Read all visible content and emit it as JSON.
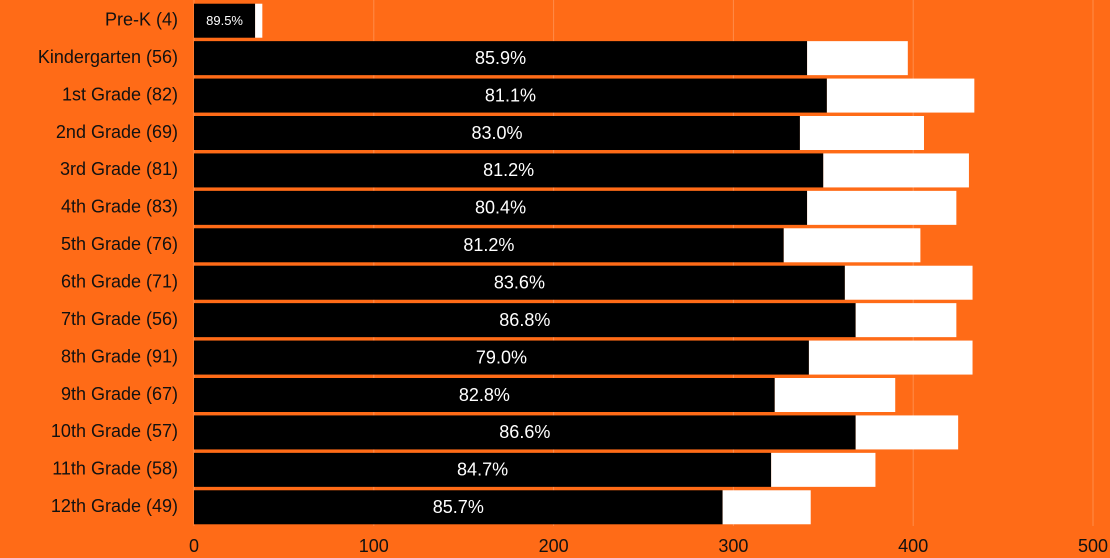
{
  "chart_data": {
    "type": "stacked_barh",
    "categories": [
      "Pre-K (4)",
      "Kindergarten (56)",
      "1st Grade (82)",
      "2nd Grade (69)",
      "3rd Grade (81)",
      "4th Grade (83)",
      "5th Grade (76)",
      "6th Grade (71)",
      "7th Grade (56)",
      "8th Grade (91)",
      "9th Grade (67)",
      "10th Grade (57)",
      "11th Grade (58)",
      "12th Grade (49)"
    ],
    "series": [
      {
        "color": "#000000",
        "values": [
          34,
          341,
          352,
          337,
          350,
          341,
          328,
          362,
          368,
          342,
          323,
          368,
          321,
          294
        ]
      },
      {
        "color": "#ffffff",
        "values": [
          4,
          56,
          82,
          69,
          81,
          83,
          76,
          71,
          56,
          91,
          67,
          57,
          58,
          49
        ]
      }
    ],
    "percent": {
      "values": [
        89.5,
        85.9,
        81.1,
        83.0,
        81.2,
        80.4,
        81.2,
        83.6,
        86.8,
        79.0,
        82.8,
        86.6,
        84.7,
        85.7
      ],
      "value_labels": [
        "89.5%",
        "85.9%",
        "81.1%",
        "83.0%",
        "81.2%",
        "80.4%",
        "81.2%",
        "83.6%",
        "86.8%",
        "79.0%",
        "82.8%",
        "86.6%",
        "84.7%",
        "85.7%"
      ]
    },
    "background": "#ff6b17",
    "xlim": [
      0,
      500
    ],
    "xticks": [
      0,
      100,
      200,
      300,
      400,
      500
    ],
    "grid": true
  }
}
